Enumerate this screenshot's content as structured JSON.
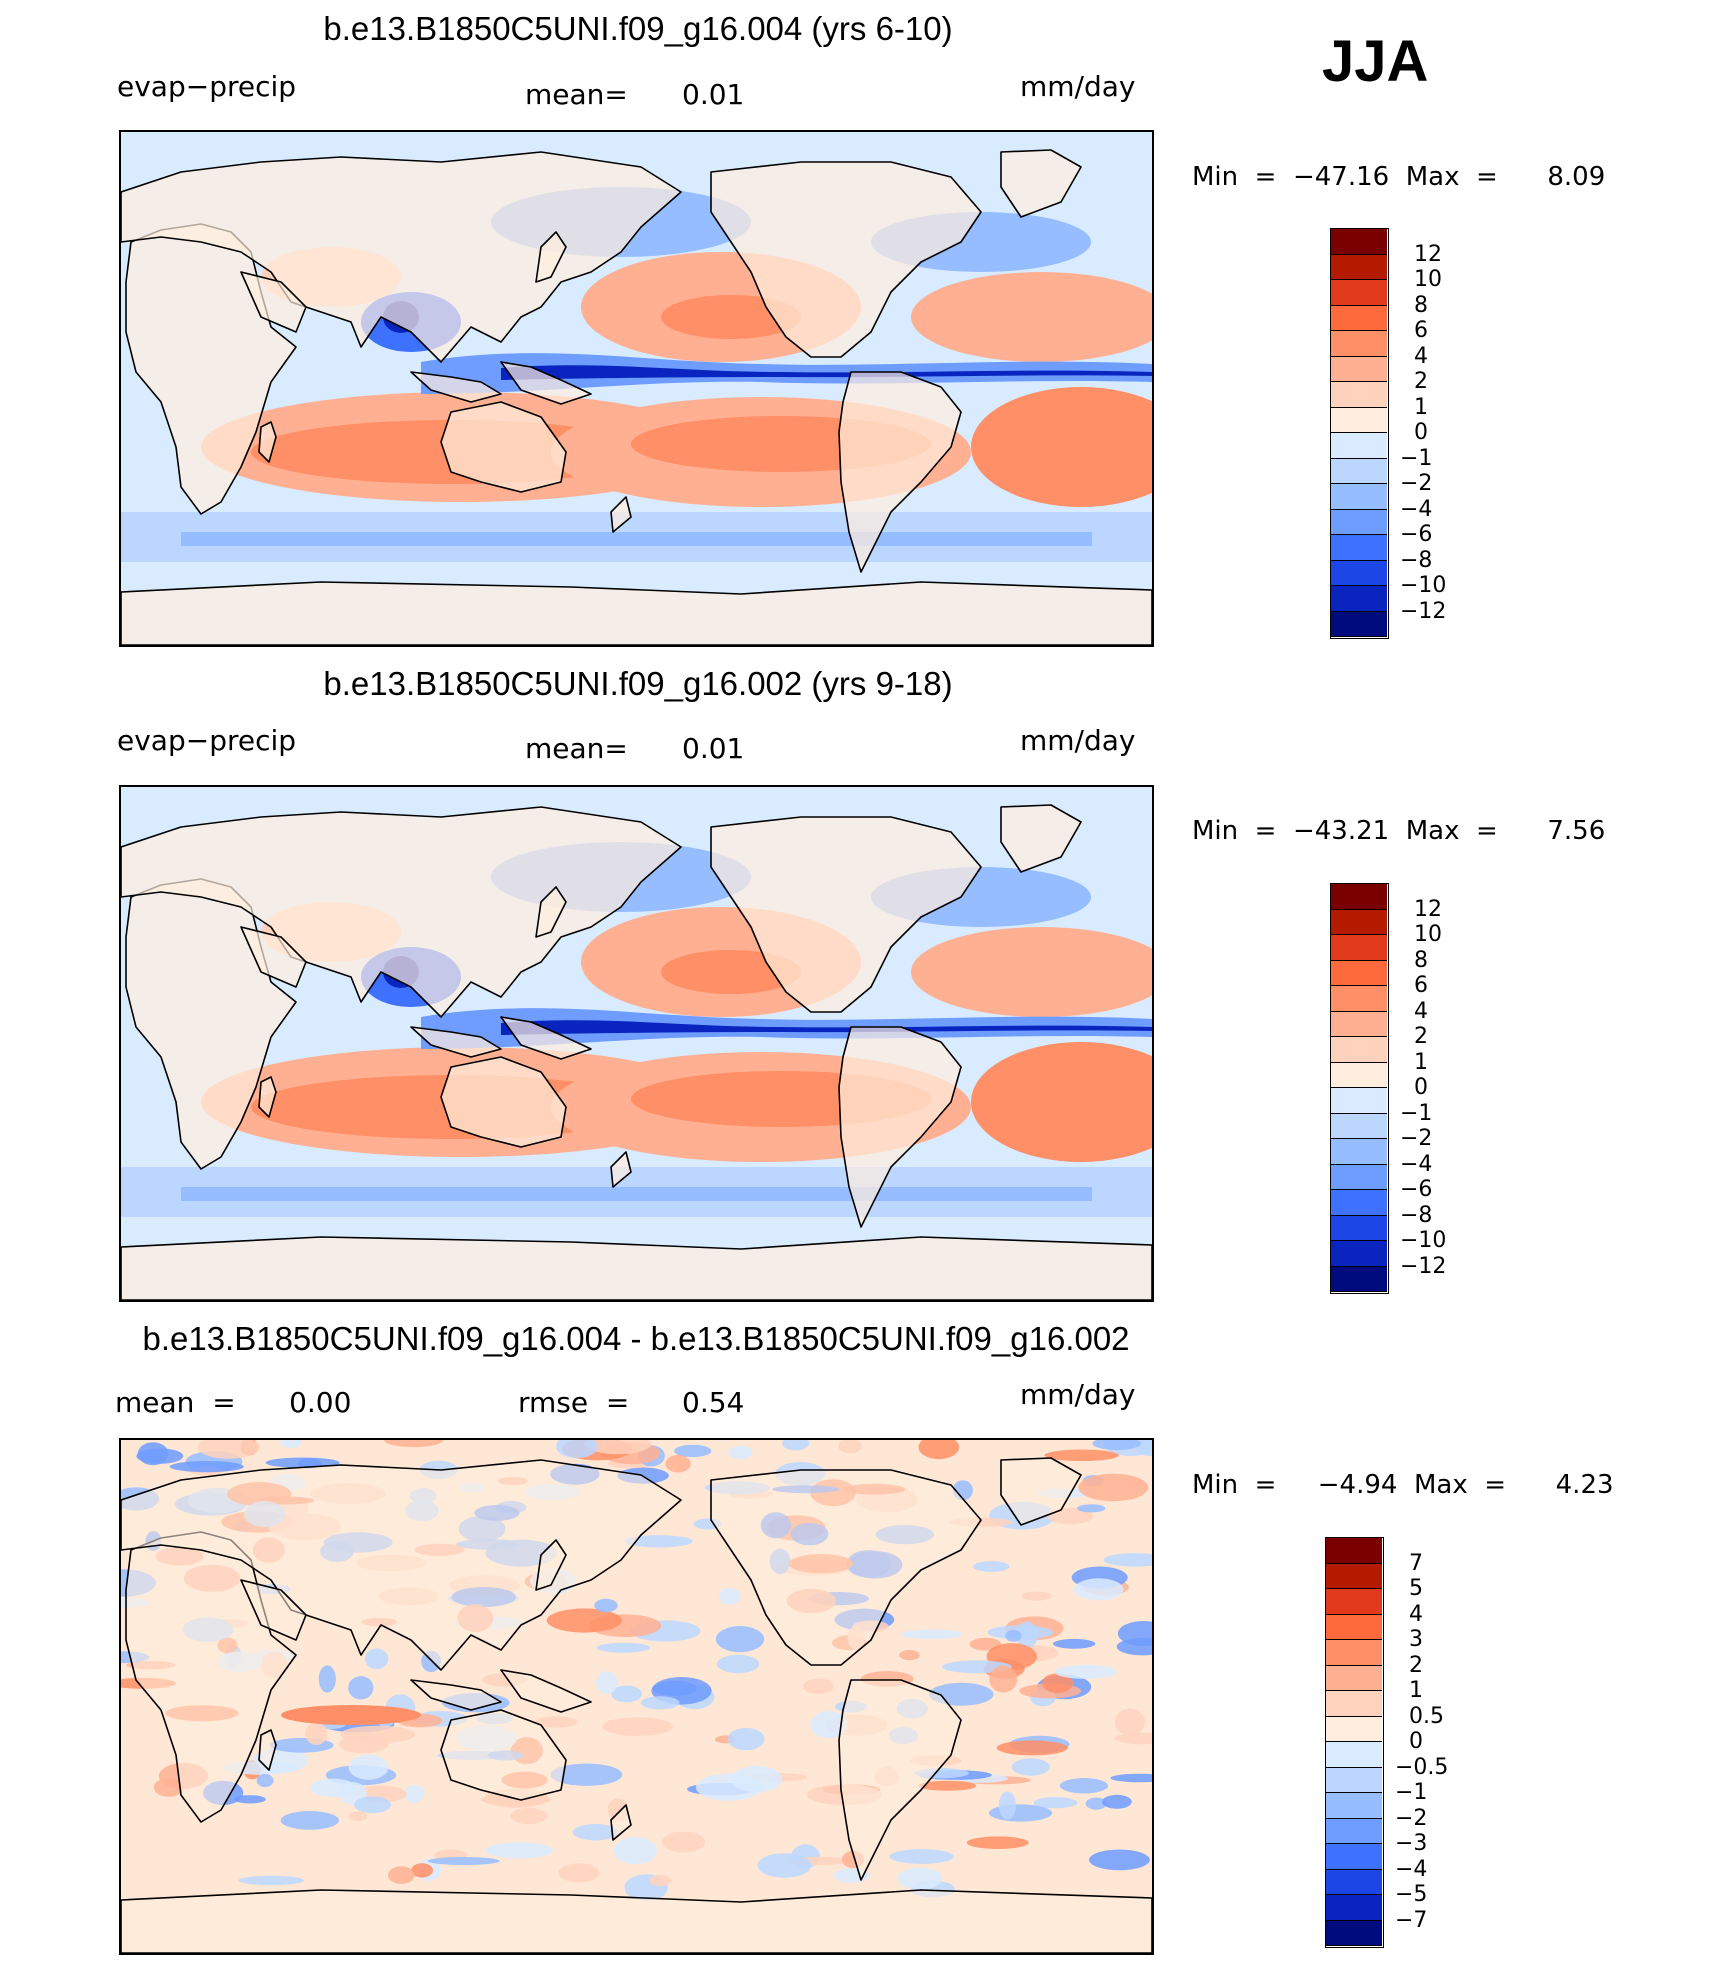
{
  "season": "JJA",
  "units": "mm/day",
  "panels": [
    {
      "title": "b.e13.B1850C5UNI.f09_g16.004 (yrs 6-10)",
      "variable": "evap−precip",
      "stat_label": "mean=",
      "stat_value": "0.01",
      "units": "mm/day",
      "min_label": "Min  =  −47.16  Max  =      8.09",
      "colorbar": {
        "ticks": [
          "12",
          "10",
          "8",
          "6",
          "4",
          "2",
          "1",
          "0",
          "−1",
          "−2",
          "−4",
          "−6",
          "−8",
          "−10",
          "−12"
        ],
        "colors": [
          "#7a0000",
          "#b31a00",
          "#e0391c",
          "#ff6a3d",
          "#ff8f66",
          "#ffb093",
          "#ffd2bd",
          "#ffeede",
          "#d9ebff",
          "#bcd7ff",
          "#96bdff",
          "#6e9cff",
          "#3f71ff",
          "#1c47e6",
          "#0a25bf",
          "#000c7d"
        ]
      }
    },
    {
      "title": "b.e13.B1850C5UNI.f09_g16.002 (yrs 9-18)",
      "variable": "evap−precip",
      "stat_label": "mean=",
      "stat_value": "0.01",
      "units": "mm/day",
      "min_label": "Min  =  −43.21  Max  =      7.56",
      "colorbar": {
        "ticks": [
          "12",
          "10",
          "8",
          "6",
          "4",
          "2",
          "1",
          "0",
          "−1",
          "−2",
          "−4",
          "−6",
          "−8",
          "−10",
          "−12"
        ],
        "colors": [
          "#7a0000",
          "#b31a00",
          "#e0391c",
          "#ff6a3d",
          "#ff8f66",
          "#ffb093",
          "#ffd2bd",
          "#ffeede",
          "#d9ebff",
          "#bcd7ff",
          "#96bdff",
          "#6e9cff",
          "#3f71ff",
          "#1c47e6",
          "#0a25bf",
          "#000c7d"
        ]
      }
    },
    {
      "title": "b.e13.B1850C5UNI.f09_g16.004 - b.e13.B1850C5UNI.f09_g16.002",
      "variable": "mean  =      0.00",
      "stat_label": "rmse  =",
      "stat_value": "0.54",
      "units": "mm/day",
      "min_label": "Min  =     −4.94  Max  =      4.23",
      "colorbar": {
        "ticks": [
          "7",
          "5",
          "4",
          "3",
          "2",
          "1",
          "0.5",
          "0",
          "−0.5",
          "−1",
          "−2",
          "−3",
          "−4",
          "−5",
          "−7"
        ],
        "colors": [
          "#7a0000",
          "#b31a00",
          "#e0391c",
          "#ff6a3d",
          "#ff8f66",
          "#ffb093",
          "#ffd2bd",
          "#ffeede",
          "#d9ebff",
          "#bcd7ff",
          "#96bdff",
          "#6e9cff",
          "#3f71ff",
          "#1c47e6",
          "#0a25bf",
          "#000c7d"
        ]
      }
    }
  ],
  "chart_data": [
    {
      "type": "heatmap",
      "title": "b.e13.B1850C5UNI.f09_g16.004 (yrs 6-10)",
      "variable": "evap−precip",
      "units": "mm/day",
      "mean": 0.01,
      "min": -47.16,
      "max": 8.09,
      "levels": [
        -12,
        -10,
        -8,
        -6,
        -4,
        -2,
        -1,
        0,
        1,
        2,
        4,
        6,
        8,
        10,
        12
      ],
      "projection": "cylindrical equidistant, centered on Pacific"
    },
    {
      "type": "heatmap",
      "title": "b.e13.B1850C5UNI.f09_g16.002 (yrs 9-18)",
      "variable": "evap−precip",
      "units": "mm/day",
      "mean": 0.01,
      "min": -43.21,
      "max": 7.56,
      "levels": [
        -12,
        -10,
        -8,
        -6,
        -4,
        -2,
        -1,
        0,
        1,
        2,
        4,
        6,
        8,
        10,
        12
      ],
      "projection": "cylindrical equidistant, centered on Pacific"
    },
    {
      "type": "heatmap",
      "title": "b.e13.B1850C5UNI.f09_g16.004 - b.e13.B1850C5UNI.f09_g16.002",
      "units": "mm/day",
      "mean": 0.0,
      "rmse": 0.54,
      "min": -4.94,
      "max": 4.23,
      "levels": [
        -7,
        -5,
        -4,
        -3,
        -2,
        -1,
        -0.5,
        0,
        0.5,
        1,
        2,
        3,
        4,
        5,
        7
      ],
      "projection": "cylindrical equidistant, centered on Pacific"
    }
  ]
}
